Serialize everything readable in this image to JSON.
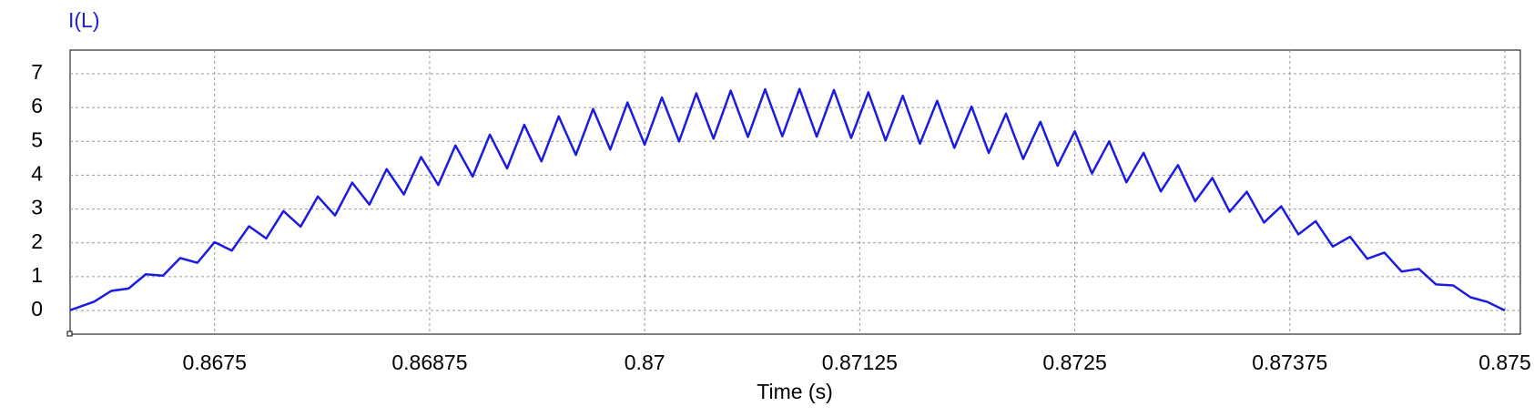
{
  "chart_data": {
    "type": "line",
    "title": "I(L)",
    "x_label": "Time (s)",
    "color": "#1c1ce0",
    "grid": true,
    "xlim": [
      0.86666,
      0.87509
    ],
    "ylim": [
      -0.7,
      7.7
    ],
    "xticks": [
      0.8675,
      0.86875,
      0.87,
      0.87125,
      0.8725,
      0.87375,
      0.875
    ],
    "yticks": [
      0,
      1,
      2,
      3,
      4,
      5,
      6,
      7
    ],
    "x": [
      0.86666,
      0.8667,
      0.8668,
      0.8669,
      0.867,
      0.8671,
      0.8672,
      0.8673,
      0.8674,
      0.8675,
      0.8676,
      0.8677,
      0.8678,
      0.8679,
      0.868,
      0.8681,
      0.8682,
      0.8683,
      0.8684,
      0.8685,
      0.8686,
      0.8687,
      0.8688,
      0.8689,
      0.869,
      0.8691,
      0.8692,
      0.8693,
      0.8694,
      0.8695,
      0.8696,
      0.8697,
      0.8698,
      0.8699,
      0.87,
      0.8701,
      0.8702,
      0.8703,
      0.8704,
      0.8705,
      0.8706,
      0.8707,
      0.8708,
      0.8709,
      0.871,
      0.8711,
      0.8712,
      0.8713,
      0.8714,
      0.8715,
      0.8716,
      0.8717,
      0.8718,
      0.8719,
      0.872,
      0.8721,
      0.8722,
      0.8723,
      0.8724,
      0.8725,
      0.8726,
      0.8727,
      0.8728,
      0.8729,
      0.873,
      0.8731,
      0.8732,
      0.8733,
      0.8734,
      0.8735,
      0.8736,
      0.8737,
      0.8738,
      0.8739,
      0.874,
      0.8741,
      0.8742,
      0.8743,
      0.8744,
      0.8745,
      0.8746,
      0.8747,
      0.8748,
      0.8749,
      0.875
    ],
    "values": [
      0.01,
      0.08,
      0.26,
      0.58,
      0.65,
      1.07,
      1.03,
      1.55,
      1.41,
      2.02,
      1.77,
      2.49,
      2.13,
      2.94,
      2.48,
      3.37,
      2.81,
      3.78,
      3.13,
      4.18,
      3.43,
      4.54,
      3.71,
      4.88,
      3.96,
      5.2,
      4.2,
      5.49,
      4.41,
      5.74,
      4.6,
      5.96,
      4.76,
      6.15,
      4.9,
      6.3,
      5.0,
      6.42,
      5.08,
      6.5,
      5.13,
      6.54,
      5.15,
      6.55,
      5.14,
      6.52,
      5.1,
      6.45,
      5.03,
      6.35,
      4.93,
      6.2,
      4.81,
      6.03,
      4.66,
      5.82,
      4.48,
      5.58,
      4.28,
      5.3,
      4.05,
      5.0,
      3.79,
      4.66,
      3.52,
      4.3,
      3.23,
      3.92,
      2.92,
      3.51,
      2.6,
      3.08,
      2.25,
      2.64,
      1.89,
      2.18,
      1.53,
      1.71,
      1.15,
      1.23,
      0.77,
      0.74,
      0.39,
      0.25,
      0.0
    ]
  }
}
